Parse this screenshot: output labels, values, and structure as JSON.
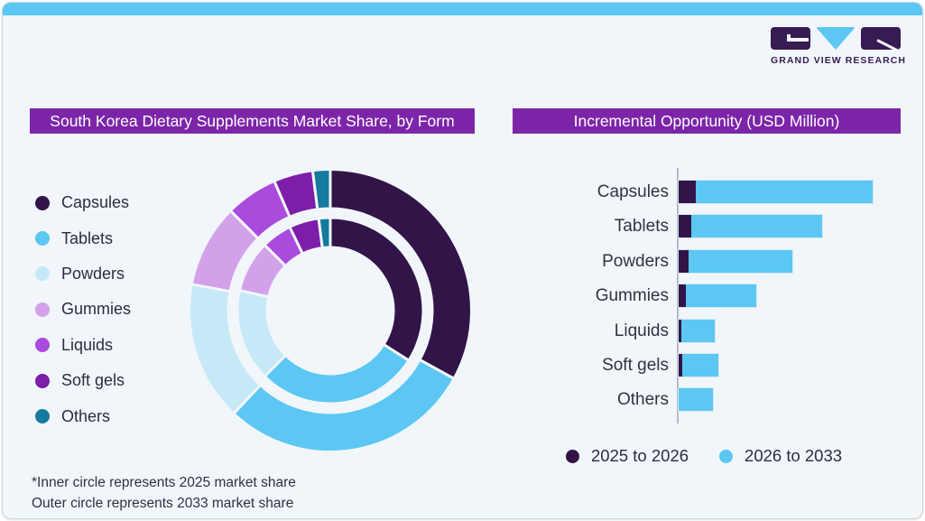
{
  "brand": {
    "logo_caption": "GRAND VIEW RESEARCH"
  },
  "left_panel": {
    "title": "South Korea Dietary Supplements Market Share, by Form",
    "footnotes": [
      "*Inner circle represents 2025 market share",
      "Outer circle represents 2033 market share"
    ]
  },
  "right_panel": {
    "title": "Incremental Opportunity (USD Million)"
  },
  "colors": {
    "accent_strip": "#5bc7f2",
    "title_bar": "#7c25a9",
    "card_bg": "#f0f6fa",
    "logo_purple": "#371b52",
    "text_dark": "#2e2c3e",
    "axis": "#b4bac4"
  },
  "chart_data": [
    {
      "type": "pie",
      "subtype": "double-ring-donut",
      "title": "South Korea Dietary Supplements Market Share, by Form",
      "unit": "% market share (estimated from arc angles, no labels shown)",
      "categories": [
        "Capsules",
        "Tablets",
        "Powders",
        "Gummies",
        "Liquids",
        "Soft gels",
        "Others"
      ],
      "colors": [
        "#321448",
        "#5bc7f2",
        "#c6e9f8",
        "#d3a1ea",
        "#a94bdc",
        "#7d1daa",
        "#157a9e"
      ],
      "series": [
        {
          "name": "2025 market share (inner circle)",
          "values": [
            34.0,
            28.5,
            16.0,
            9.0,
            5.3,
            5.2,
            2.0
          ]
        },
        {
          "name": "2033 market share (outer circle)",
          "values": [
            33.0,
            29.0,
            16.0,
            9.5,
            6.0,
            4.5,
            2.0
          ]
        }
      ],
      "legend_position": "left",
      "start_angle_deg": 0,
      "direction": "clockwise"
    },
    {
      "type": "bar",
      "orientation": "horizontal",
      "stacked": true,
      "title": "Incremental Opportunity (USD Million)",
      "categories": [
        "Capsules",
        "Tablets",
        "Powders",
        "Gummies",
        "Liquids",
        "Soft gels",
        "Others"
      ],
      "series": [
        {
          "name": "2025 to 2026",
          "color": "#321448",
          "values": [
            19,
            14,
            11,
            8,
            3,
            4,
            0
          ]
        },
        {
          "name": "2026 to 2033",
          "color": "#5bc7f2",
          "values": [
            196,
            145,
            115,
            78,
            37,
            40,
            38
          ]
        }
      ],
      "xlim": [
        0,
        230
      ],
      "axis_labels_shown": false,
      "grid": false,
      "legend_position": "bottom"
    }
  ]
}
